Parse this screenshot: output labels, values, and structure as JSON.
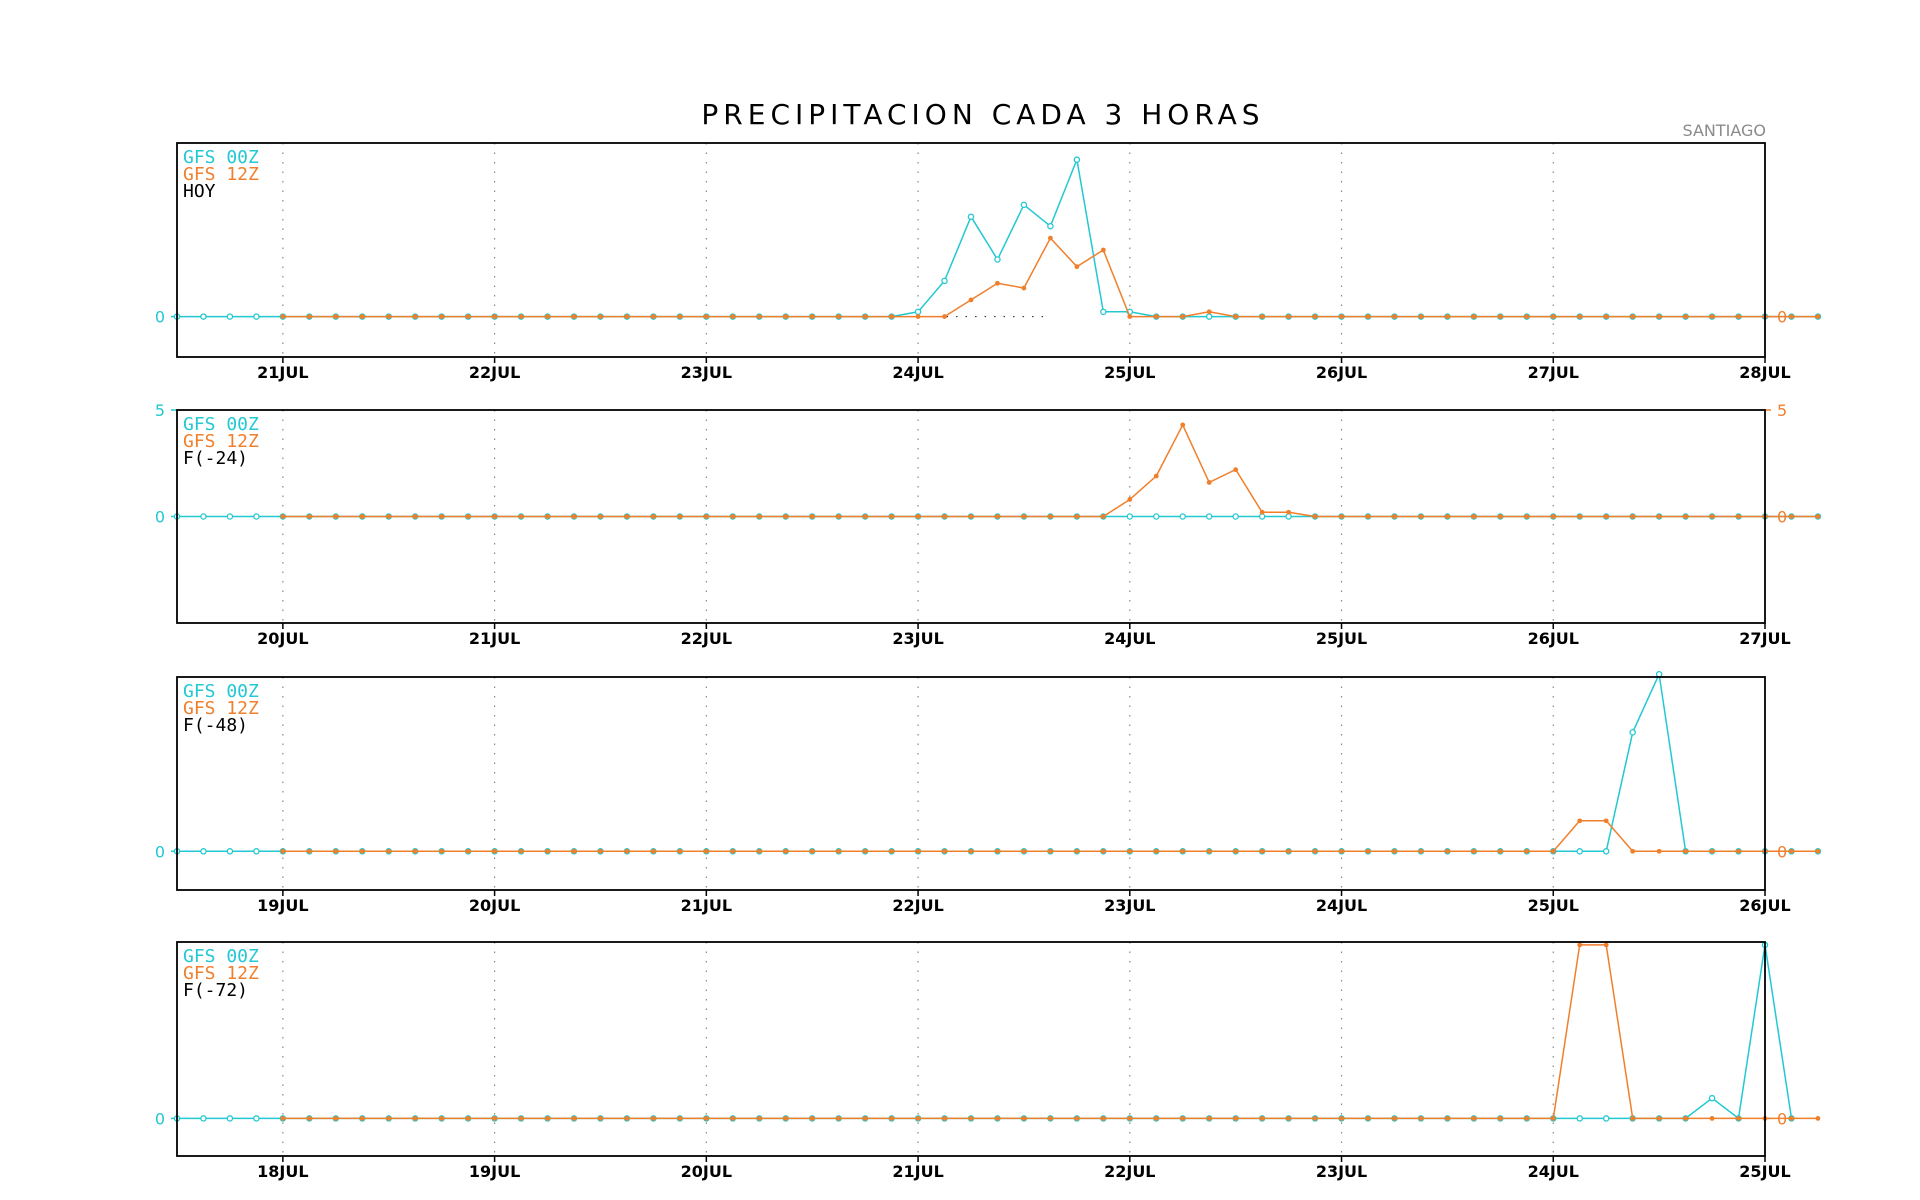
{
  "title": "PRECIPITACION CADA 3 HORAS",
  "station": "SANTIAGO",
  "colors": {
    "gfs00": "#22c8d2",
    "gfs12": "#f07f2b",
    "frame": "#000000",
    "grid": "#888888"
  },
  "chart_data": [
    {
      "type": "line",
      "legend": [
        "GFS 00Z",
        "GFS 12Z",
        "HOY"
      ],
      "xlim_days": [
        20.5,
        28
      ],
      "x_tick_labels": [
        "21JUL",
        "22JUL",
        "23JUL",
        "24JUL",
        "25JUL",
        "26JUL",
        "27JUL",
        "28JUL"
      ],
      "x_tick_days": [
        21,
        22,
        23,
        24,
        25,
        26,
        27,
        28
      ],
      "ylim": [
        -1.7,
        7.3
      ],
      "y_tick_labels": [
        "0",
        "0"
      ],
      "zero_line_dotted": true,
      "series": [
        {
          "name": "GFS 00Z",
          "start_day": 20.5,
          "values": [
            0,
            0,
            0,
            0,
            0,
            0,
            0,
            0,
            0,
            0,
            0,
            0,
            0,
            0,
            0,
            0,
            0,
            0,
            0,
            0,
            0,
            0,
            0,
            0,
            0,
            0,
            0,
            0,
            0.2,
            1.5,
            4.2,
            2.4,
            4.7,
            3.8,
            6.6,
            0.2,
            0.2,
            0,
            0,
            0,
            0,
            0,
            0,
            0,
            0,
            0,
            0,
            0,
            0,
            0,
            0,
            0,
            0,
            0,
            0,
            0,
            0,
            0,
            0,
            0,
            0,
            0,
            0
          ]
        },
        {
          "name": "GFS 12Z",
          "start_day": 21.0,
          "values": [
            0,
            0,
            0,
            0,
            0,
            0,
            0,
            0,
            0,
            0,
            0,
            0,
            0,
            0,
            0,
            0,
            0,
            0,
            0,
            0,
            0,
            0,
            0,
            0,
            0,
            0,
            0.7,
            1.4,
            1.2,
            3.3,
            2.1,
            2.8,
            0,
            0,
            0,
            0.2,
            0,
            0,
            0,
            0,
            0,
            0,
            0,
            0,
            0,
            0,
            0,
            0,
            0,
            0,
            0,
            0,
            0,
            0,
            0,
            0,
            0,
            0,
            0
          ]
        }
      ]
    },
    {
      "type": "line",
      "legend": [
        "GFS 00Z",
        "GFS 12Z",
        "F(-24)"
      ],
      "xlim_days": [
        19.5,
        27
      ],
      "x_tick_labels": [
        "20JUL",
        "21JUL",
        "22JUL",
        "23JUL",
        "24JUL",
        "25JUL",
        "26JUL",
        "27JUL"
      ],
      "x_tick_days": [
        20,
        21,
        22,
        23,
        24,
        25,
        26,
        27
      ],
      "ylim": [
        -5,
        5
      ],
      "y_tick_labels": [
        "0",
        "5"
      ],
      "series": [
        {
          "name": "GFS 00Z",
          "start_day": 19.5,
          "values": [
            0,
            0,
            0,
            0,
            0,
            0,
            0,
            0,
            0,
            0,
            0,
            0,
            0,
            0,
            0,
            0,
            0,
            0,
            0,
            0,
            0,
            0,
            0,
            0,
            0,
            0,
            0,
            0,
            0,
            0,
            0,
            0,
            0,
            0,
            0,
            0,
            0,
            0,
            0,
            0,
            0,
            0,
            0,
            0,
            0,
            0,
            0,
            0,
            0,
            0,
            0,
            0,
            0,
            0,
            0,
            0,
            0,
            0,
            0,
            0,
            0,
            0,
            0
          ]
        },
        {
          "name": "GFS 12Z",
          "start_day": 20.0,
          "values": [
            0,
            0,
            0,
            0,
            0,
            0,
            0,
            0,
            0,
            0,
            0,
            0,
            0,
            0,
            0,
            0,
            0,
            0,
            0,
            0,
            0,
            0,
            0,
            0,
            0,
            0,
            0,
            0,
            0,
            0,
            0,
            0,
            0.8,
            1.9,
            4.3,
            1.6,
            2.2,
            0.2,
            0.2,
            0,
            0,
            0,
            0,
            0,
            0,
            0,
            0,
            0,
            0,
            0,
            0,
            0,
            0,
            0,
            0,
            0,
            0,
            0,
            0
          ]
        }
      ]
    },
    {
      "type": "line",
      "legend": [
        "GFS 00Z",
        "GFS 12Z",
        "F(-48)"
      ],
      "xlim_days": [
        18.5,
        26
      ],
      "x_tick_labels": [
        "19JUL",
        "20JUL",
        "21JUL",
        "22JUL",
        "23JUL",
        "24JUL",
        "25JUL",
        "26JUL"
      ],
      "x_tick_days": [
        19,
        20,
        21,
        22,
        23,
        24,
        25,
        26
      ],
      "ylim": [
        -1.4,
        6.3
      ],
      "y_tick_labels": [
        "0",
        "0"
      ],
      "series": [
        {
          "name": "GFS 00Z",
          "start_day": 18.5,
          "values": [
            0,
            0,
            0,
            0,
            0,
            0,
            0,
            0,
            0,
            0,
            0,
            0,
            0,
            0,
            0,
            0,
            0,
            0,
            0,
            0,
            0,
            0,
            0,
            0,
            0,
            0,
            0,
            0,
            0,
            0,
            0,
            0,
            0,
            0,
            0,
            0,
            0,
            0,
            0,
            0,
            0,
            0,
            0,
            0,
            0,
            0,
            0,
            0,
            0,
            0,
            0,
            0,
            0,
            0,
            0,
            4.3,
            6.4,
            0,
            0,
            0,
            0,
            0,
            0
          ]
        },
        {
          "name": "GFS 12Z",
          "start_day": 19.0,
          "values": [
            0,
            0,
            0,
            0,
            0,
            0,
            0,
            0,
            0,
            0,
            0,
            0,
            0,
            0,
            0,
            0,
            0,
            0,
            0,
            0,
            0,
            0,
            0,
            0,
            0,
            0,
            0,
            0,
            0,
            0,
            0,
            0,
            0,
            0,
            0,
            0,
            0,
            0,
            0,
            0,
            0,
            0,
            0,
            0,
            0,
            0,
            0,
            0,
            0,
            1.1,
            1.1,
            0,
            0,
            0,
            0,
            0,
            0,
            0,
            0
          ]
        }
      ]
    },
    {
      "type": "line",
      "legend": [
        "GFS 00Z",
        "GFS 12Z",
        "F(-72)"
      ],
      "xlim_days": [
        17.5,
        25
      ],
      "x_tick_labels": [
        "18JUL",
        "19JUL",
        "20JUL",
        "21JUL",
        "22JUL",
        "23JUL",
        "24JUL",
        "25JUL"
      ],
      "x_tick_days": [
        18,
        19,
        20,
        21,
        22,
        23,
        24,
        25
      ],
      "ylim": [
        -1.3,
        6.1
      ],
      "y_tick_labels": [
        "0",
        "0"
      ],
      "series": [
        {
          "name": "GFS 00Z",
          "start_day": 17.5,
          "values": [
            0,
            0,
            0,
            0,
            0,
            0,
            0,
            0,
            0,
            0,
            0,
            0,
            0,
            0,
            0,
            0,
            0,
            0,
            0,
            0,
            0,
            0,
            0,
            0,
            0,
            0,
            0,
            0,
            0,
            0,
            0,
            0,
            0,
            0,
            0,
            0,
            0,
            0,
            0,
            0,
            0,
            0,
            0,
            0,
            0,
            0,
            0,
            0,
            0,
            0,
            0,
            0,
            0,
            0,
            0,
            0,
            0,
            0,
            0.7,
            0,
            6.0,
            0
          ]
        },
        {
          "name": "GFS 12Z",
          "start_day": 18.0,
          "values": [
            0,
            0,
            0,
            0,
            0,
            0,
            0,
            0,
            0,
            0,
            0,
            0,
            0,
            0,
            0,
            0,
            0,
            0,
            0,
            0,
            0,
            0,
            0,
            0,
            0,
            0,
            0,
            0,
            0,
            0,
            0,
            0,
            0,
            0,
            0,
            0,
            0,
            0,
            0,
            0,
            0,
            0,
            0,
            0,
            0,
            0,
            0,
            0,
            0,
            6.0,
            6.0,
            0,
            0,
            0,
            0,
            0,
            0,
            0,
            0
          ]
        }
      ]
    }
  ]
}
